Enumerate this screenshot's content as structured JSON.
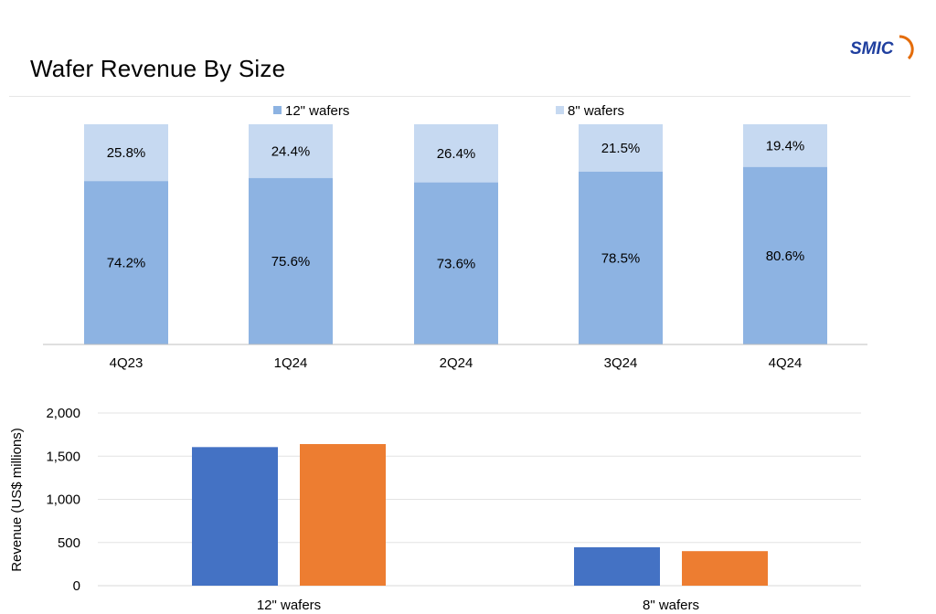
{
  "page": {
    "title": "Wafer Revenue By Size",
    "logo_text": "SMIC"
  },
  "colors": {
    "wafer12_share": "#8db3e2",
    "wafer8_share": "#c6d9f1",
    "wafer12_revenue": "#4472c4",
    "wafer8_revenue_orange": "#ed7d31",
    "logo_blue": "#1f3f9f",
    "logo_arc": "#e46c0a"
  },
  "chart_data": [
    {
      "type": "bar",
      "stacked": true,
      "percent": true,
      "categories": [
        "4Q23",
        "1Q24",
        "2Q24",
        "3Q24",
        "4Q24"
      ],
      "series": [
        {
          "name": "12\" wafers",
          "values": [
            74.2,
            75.6,
            73.6,
            78.5,
            80.6
          ],
          "labels": [
            "74.2%",
            "75.6%",
            "73.6%",
            "78.5%",
            "80.6%"
          ]
        },
        {
          "name": "8\" wafers",
          "values": [
            25.8,
            24.4,
            26.4,
            21.5,
            19.4
          ],
          "labels": [
            "25.8%",
            "24.4%",
            "26.4%",
            "21.5%",
            "19.4%"
          ]
        }
      ],
      "ylim": [
        0,
        100
      ],
      "legend": "top"
    },
    {
      "type": "bar",
      "categories": [
        "12\" wafers",
        "8\" wafers"
      ],
      "series": [
        {
          "values": [
            1605,
            445
          ]
        },
        {
          "values": [
            1640,
            400
          ]
        }
      ],
      "ylabel": "Revenue (US$  millions)",
      "ylim": [
        0,
        2000
      ],
      "yticks": [
        "0",
        "500",
        "1,000",
        "1,500",
        "2,000"
      ],
      "ytick_values": [
        0,
        500,
        1000,
        1500,
        2000
      ],
      "grid": true
    }
  ]
}
